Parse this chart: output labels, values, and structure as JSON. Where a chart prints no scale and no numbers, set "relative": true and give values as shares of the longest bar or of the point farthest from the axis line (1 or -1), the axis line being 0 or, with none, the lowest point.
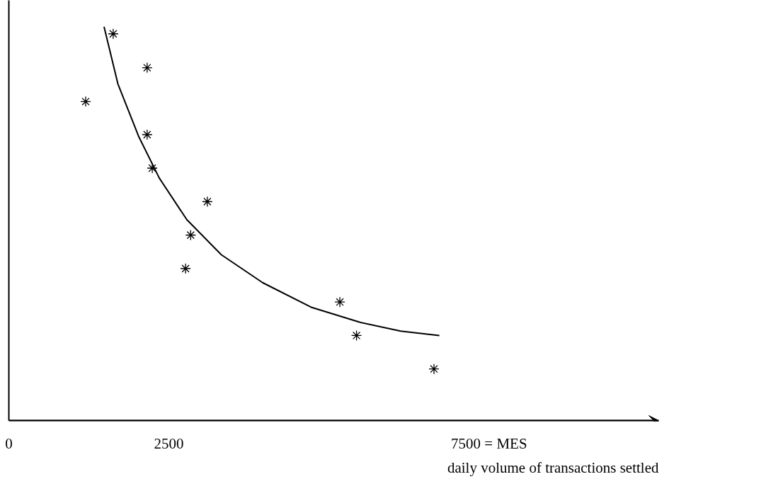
{
  "chart_data": {
    "type": "scatter",
    "relative": true,
    "xlabel": "daily volume of transactions settled",
    "xlim": [
      0,
      10150
    ],
    "xticks": [
      0,
      2500,
      {
        "value": 7500,
        "label": "7500 = MES"
      }
    ],
    "grid": false,
    "marker": "cross",
    "tick_labels": "x",
    "series": [
      {
        "type": "scatter",
        "color": "#000000",
        "x": [
          1200,
          1630,
          2160,
          2160,
          2240,
          3100,
          2840,
          2760,
          5170,
          5430,
          6640
        ],
        "values": [
          0.81,
          0.982,
          0.896,
          0.726,
          0.641,
          0.556,
          0.471,
          0.386,
          0.301,
          0.216,
          0.131
        ]
      },
      {
        "type": "line",
        "color": "#000000",
        "marker": "none",
        "line_style": "solid",
        "x": [
          1487,
          1703,
          2026,
          2349,
          2780,
          3319,
          3966,
          4720,
          5474,
          6121,
          6724
        ],
        "values": [
          1,
          0.855,
          0.722,
          0.616,
          0.51,
          0.421,
          0.35,
          0.288,
          0.25,
          0.227,
          0.216
        ]
      }
    ]
  }
}
